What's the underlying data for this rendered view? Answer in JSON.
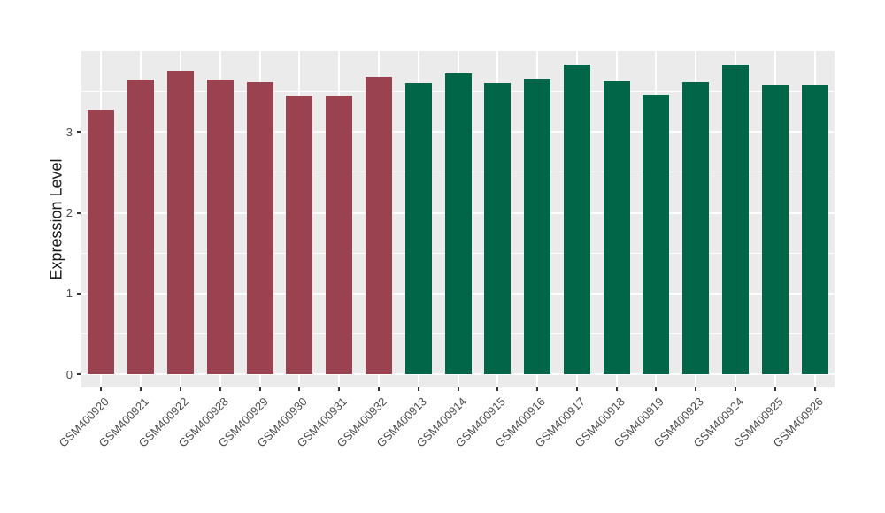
{
  "chart_data": {
    "type": "bar",
    "title": "",
    "xlabel": "",
    "ylabel": "Expression Level",
    "categories": [
      "GSM400920",
      "GSM400921",
      "GSM400922",
      "GSM400928",
      "GSM400929",
      "GSM400930",
      "GSM400931",
      "GSM400932",
      "GSM400913",
      "GSM400914",
      "GSM400915",
      "GSM400916",
      "GSM400917",
      "GSM400918",
      "GSM400919",
      "GSM400923",
      "GSM400924",
      "GSM400925",
      "GSM400926"
    ],
    "values": [
      3.28,
      3.65,
      3.76,
      3.65,
      3.61,
      3.45,
      3.45,
      3.68,
      3.6,
      3.72,
      3.6,
      3.66,
      3.83,
      3.63,
      3.46,
      3.61,
      3.83,
      3.58,
      3.58
    ],
    "groups": [
      {
        "color": "#9A4250",
        "start": 0,
        "count": 8
      },
      {
        "color": "#016648",
        "start": 8,
        "count": 11
      }
    ],
    "yticks": [
      0,
      1,
      2,
      3
    ],
    "minor_yticks": [
      0.5,
      1.5,
      2.5,
      3.5
    ],
    "ylim": [
      0,
      4.0
    ],
    "grid": true,
    "legend_position": "none",
    "panel_bg": "#EBEBEB",
    "grid_color": "#FFFFFF",
    "tick_color": "#333333",
    "tick_label_color": "#4D4D4D",
    "axis_title_color": "#1A1A1A"
  }
}
